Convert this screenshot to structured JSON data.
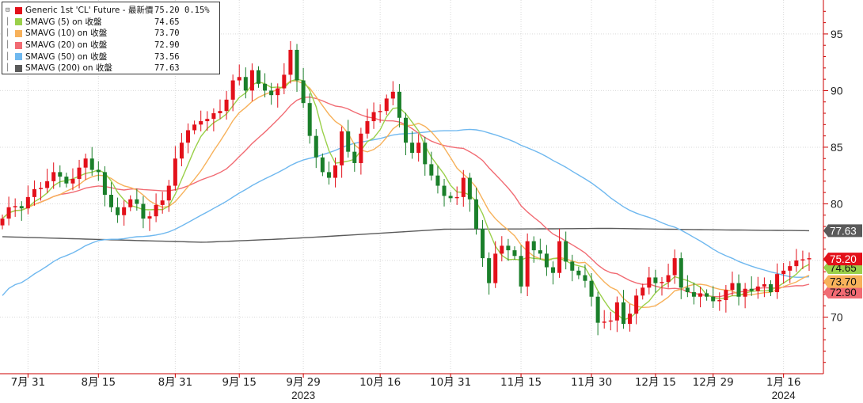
{
  "legend": {
    "rows": [
      {
        "name": "Generic 1st 'CL' Future - 最新價",
        "value": "75.20",
        "change": "0.15%",
        "color": "#e3101a"
      },
      {
        "name": "SMAVG (5)  on 收盤",
        "value": "74.65",
        "change": "",
        "color": "#9ad04a"
      },
      {
        "name": "SMAVG (10)  on 收盤",
        "value": "73.70",
        "change": "",
        "color": "#f7b15a"
      },
      {
        "name": "SMAVG (20)  on 收盤",
        "value": "72.90",
        "change": "",
        "color": "#f16b73"
      },
      {
        "name": "SMAVG (50)  on 收盤",
        "value": "73.56",
        "change": "",
        "color": "#6fb8ef"
      },
      {
        "name": "SMAVG (200)  on 收盤",
        "value": "77.63",
        "change": "",
        "color": "#5a5a5a"
      }
    ]
  },
  "chart_data": {
    "type": "candlestick",
    "ylim": [
      65,
      98
    ],
    "y_ticks": [
      70,
      75,
      80,
      85,
      90,
      95
    ],
    "x_ticks": [
      "7月 31",
      "8月 15",
      "8月 31",
      "9月 15",
      "9月 29",
      "10月 16",
      "10月 31",
      "11月 15",
      "11月 30",
      "12月 15",
      "12月 29",
      "1月 16"
    ],
    "x_tick_index": [
      4,
      15,
      27,
      37,
      47,
      59,
      70,
      81,
      92,
      102,
      111,
      122
    ],
    "year_labels": [
      {
        "label": "2023",
        "index": 47
      },
      {
        "label": "2024",
        "index": 122
      }
    ],
    "up_color": "#e3101a",
    "down_color": "#1a7f2a",
    "close": [
      78.7,
      79.7,
      79.8,
      79.6,
      80.6,
      81.3,
      81.4,
      82.0,
      82.8,
      82.4,
      81.8,
      82.2,
      83.2,
      84.0,
      83.0,
      82.8,
      80.8,
      79.7,
      79.0,
      79.7,
      80.4,
      80.0,
      78.7,
      78.9,
      79.9,
      80.3,
      81.6,
      84.0,
      85.4,
      86.5,
      87.0,
      87.3,
      87.5,
      88.0,
      88.2,
      89.2,
      90.9,
      91.2,
      90.0,
      91.8,
      90.6,
      90.0,
      89.6,
      90.2,
      91.4,
      93.6,
      90.9,
      88.9,
      86.0,
      84.1,
      82.8,
      82.3,
      83.4,
      86.4,
      84.6,
      83.6,
      86.2,
      87.3,
      88.1,
      88.2,
      89.3,
      89.9,
      87.6,
      85.4,
      84.5,
      85.4,
      83.5,
      82.5,
      81.6,
      80.7,
      80.5,
      80.6,
      82.3,
      80.4,
      77.8,
      75.2,
      73.0,
      75.6,
      76.3,
      75.9,
      75.4,
      72.7,
      76.7,
      75.9,
      75.6,
      74.4,
      73.9,
      76.7,
      74.9,
      74.1,
      73.7,
      73.2,
      71.8,
      69.5,
      69.6,
      69.7,
      71.3,
      69.4,
      70.3,
      71.9,
      72.6,
      73.5,
      73.0,
      73.1,
      73.7,
      75.2,
      72.6,
      72.2,
      71.8,
      72.1,
      71.8,
      71.4,
      71.5,
      72.4,
      73.0,
      71.8,
      72.5,
      72.3,
      72.7,
      72.9,
      72.2,
      73.8,
      74.1,
      74.5,
      75.0,
      75.1,
      75.2
    ],
    "sma5_last": 74.65,
    "sma10_last": 73.7,
    "sma20_last": 72.9,
    "sma50_last": 73.56,
    "sma200_last": 77.63,
    "last_price": 75.2
  },
  "axis_labels": {
    "price": {
      "text": "75.20",
      "color": "#e3101a"
    },
    "sma5": {
      "text": "74.65",
      "color": "#9ad04a"
    },
    "sma10": {
      "text": "73.70",
      "color": "#f7b15a"
    },
    "sma20": {
      "text": "72.90",
      "color": "#f16b73"
    },
    "sma200": {
      "text": "77.63",
      "color": "#5a5a5a"
    }
  }
}
